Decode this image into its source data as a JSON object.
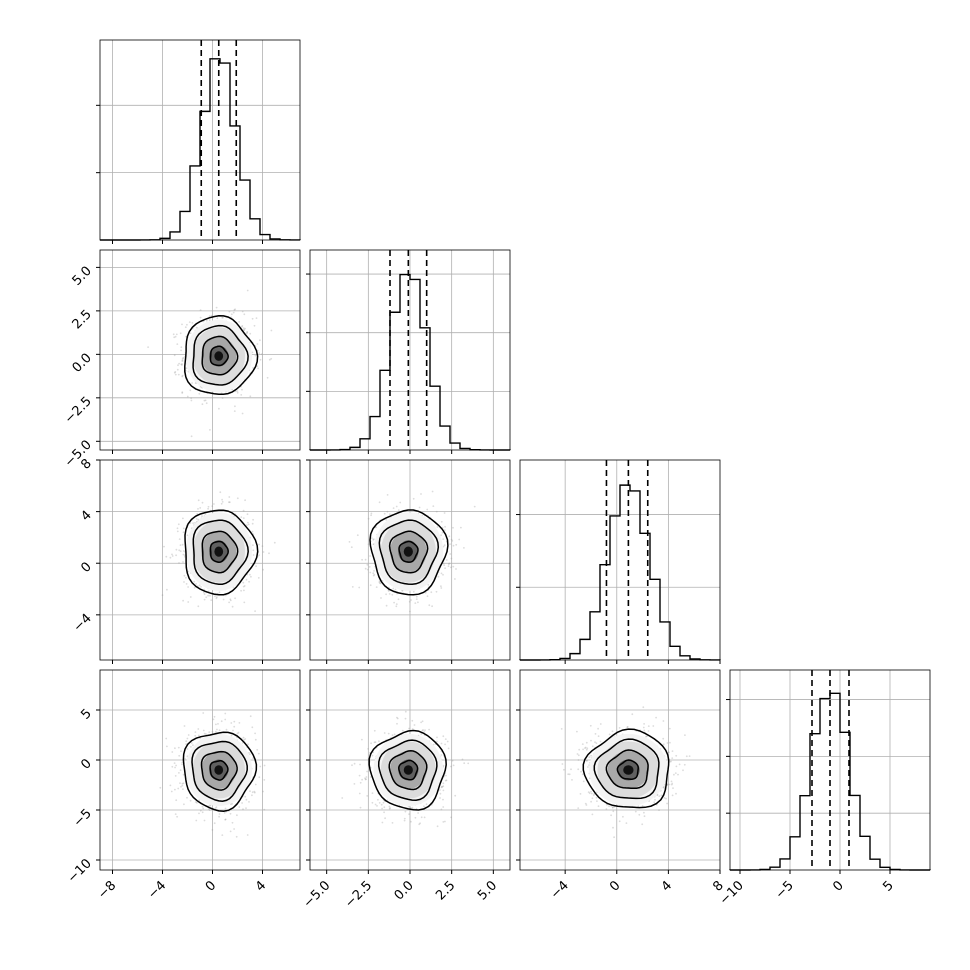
{
  "chart_data": {
    "type": "corner",
    "grid": true,
    "variables": [
      {
        "range": [
          -9,
          7
        ],
        "ticks": [
          -8,
          -4,
          0,
          4
        ],
        "tick_labels": [
          "−8",
          "−4",
          "0",
          "4"
        ],
        "quantiles": [
          -0.9,
          0.5,
          1.9
        ],
        "mean": 0.5,
        "std": 1.4,
        "hist_max": 1350
      },
      {
        "range": [
          -6,
          6
        ],
        "ticks": [
          -5,
          -2.5,
          0,
          2.5,
          5
        ],
        "tick_labels": [
          "−5.0",
          "−2.5",
          "0.0",
          "2.5",
          "5.0"
        ],
        "quantiles": [
          -1.2,
          -0.1,
          1.0
        ],
        "mean": -0.1,
        "std": 1.1,
        "hist_max": 1550
      },
      {
        "range": [
          -7.5,
          8
        ],
        "ticks": [
          -4,
          0,
          4,
          8
        ],
        "tick_labels": [
          "−4",
          "0",
          "4",
          "8"
        ],
        "quantiles": [
          -0.8,
          0.9,
          2.4
        ],
        "mean": 0.9,
        "std": 1.6,
        "hist_max": 1250
      },
      {
        "range": [
          -11,
          9
        ],
        "ticks": [
          -10,
          -5,
          0,
          5
        ],
        "tick_labels": [
          "−10",
          "−5",
          "0",
          "5"
        ],
        "quantiles": [
          -2.8,
          -1.0,
          0.9
        ],
        "mean": -1.0,
        "std": 1.9,
        "hist_max": 1600
      }
    ],
    "row_ticks": {
      "1": {
        "range": [
          -5.5,
          6
        ],
        "ticks": [
          -5,
          -2.5,
          0,
          2.5,
          5
        ],
        "tick_labels": [
          "−5.0",
          "−2.5",
          "0.0",
          "2.5",
          "5.0"
        ]
      },
      "2": {
        "range": [
          -7.5,
          8
        ],
        "ticks": [
          -4,
          0,
          4,
          8
        ],
        "tick_labels": [
          "−4",
          "0",
          "4",
          "8"
        ]
      },
      "3": {
        "range": [
          -11,
          9
        ],
        "ticks": [
          -10,
          -5,
          0,
          5
        ],
        "tick_labels": [
          "−10",
          "−5",
          "0",
          "5"
        ]
      }
    },
    "colors": {
      "points": "#9a9a9a",
      "contour": "#000000",
      "hist": "#000000",
      "grid": "#b0b0b0"
    }
  }
}
